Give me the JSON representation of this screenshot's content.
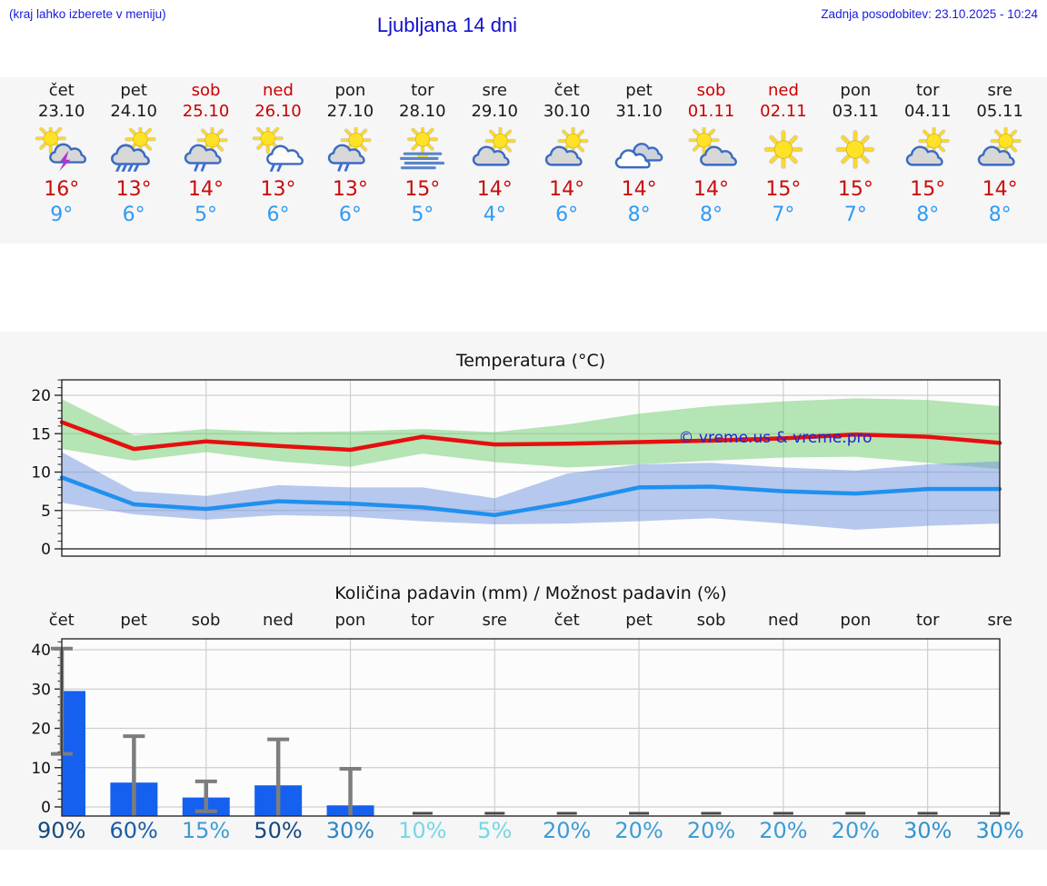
{
  "header": {
    "note": "(kraj lahko izberete v meniju)",
    "title": "Ljubljana 14 dni",
    "updated": "Zadnja posodobitev: 23.10.2025 - 10:24"
  },
  "forecast_days": [
    {
      "name": "čet",
      "date": "23.10",
      "weekend": false,
      "icon": "storm",
      "high": "16°",
      "low": "9°"
    },
    {
      "name": "pet",
      "date": "24.10",
      "weekend": false,
      "icon": "rain-heavy",
      "high": "13°",
      "low": "6°"
    },
    {
      "name": "sob",
      "date": "25.10",
      "weekend": true,
      "icon": "rain-light",
      "high": "14°",
      "low": "5°"
    },
    {
      "name": "ned",
      "date": "26.10",
      "weekend": true,
      "icon": "white-rain",
      "high": "13°",
      "low": "6°"
    },
    {
      "name": "pon",
      "date": "27.10",
      "weekend": false,
      "icon": "rain-light",
      "high": "13°",
      "low": "6°"
    },
    {
      "name": "tor",
      "date": "28.10",
      "weekend": false,
      "icon": "fog",
      "high": "15°",
      "low": "5°"
    },
    {
      "name": "sre",
      "date": "29.10",
      "weekend": false,
      "icon": "partly",
      "high": "14°",
      "low": "4°"
    },
    {
      "name": "čet",
      "date": "30.10",
      "weekend": false,
      "icon": "partly",
      "high": "14°",
      "low": "6°"
    },
    {
      "name": "pet",
      "date": "31.10",
      "weekend": false,
      "icon": "cloudy",
      "high": "14°",
      "low": "8°"
    },
    {
      "name": "sob",
      "date": "01.11",
      "weekend": true,
      "icon": "partly2",
      "high": "14°",
      "low": "8°"
    },
    {
      "name": "ned",
      "date": "02.11",
      "weekend": true,
      "icon": "sunny",
      "high": "15°",
      "low": "7°"
    },
    {
      "name": "pon",
      "date": "03.11",
      "weekend": false,
      "icon": "sunny",
      "high": "15°",
      "low": "7°"
    },
    {
      "name": "tor",
      "date": "04.11",
      "weekend": false,
      "icon": "partly",
      "high": "15°",
      "low": "8°"
    },
    {
      "name": "sre",
      "date": "05.11",
      "weekend": false,
      "icon": "partly",
      "high": "14°",
      "low": "8°"
    }
  ],
  "chart_data": [
    {
      "type": "line",
      "title": "Temperatura (°C)",
      "categories": [
        "čet",
        "pet",
        "sob",
        "ned",
        "pon",
        "tor",
        "sre",
        "čet",
        "pet",
        "sob",
        "ned",
        "pon",
        "tor",
        "sre"
      ],
      "ylim": [
        -1,
        22
      ],
      "yticks": [
        0,
        5,
        10,
        15,
        20
      ],
      "grid": true,
      "watermark": "© vreme.us & vreme.pro",
      "series": [
        {
          "name": "max",
          "color": "#e60f0f",
          "values": [
            16.5,
            13.0,
            14.0,
            13.4,
            12.9,
            14.6,
            13.6,
            13.7,
            13.9,
            14.1,
            14.4,
            14.9,
            14.6,
            13.8
          ]
        },
        {
          "name": "min",
          "color": "#2090ef",
          "values": [
            9.3,
            5.8,
            5.2,
            6.2,
            5.9,
            5.4,
            4.4,
            6.0,
            8.0,
            8.1,
            7.5,
            7.2,
            7.8,
            7.8
          ]
        },
        {
          "name": "max_range_hi",
          "color": "#a8dca8",
          "values": [
            19.5,
            14.8,
            15.6,
            15.2,
            15.3,
            15.6,
            15.2,
            16.2,
            17.6,
            18.6,
            19.2,
            19.6,
            19.4,
            18.6
          ]
        },
        {
          "name": "max_range_lo",
          "color": "#a8dca8",
          "values": [
            13.0,
            11.5,
            12.6,
            11.4,
            10.7,
            12.4,
            11.3,
            10.6,
            11.0,
            11.5,
            11.9,
            12.0,
            11.2,
            10.4
          ]
        },
        {
          "name": "min_range_hi",
          "color": "#aebfe8",
          "values": [
            12.6,
            7.5,
            6.9,
            8.3,
            8.0,
            8.0,
            6.6,
            9.8,
            11.0,
            11.2,
            10.6,
            10.2,
            11.0,
            11.4
          ]
        },
        {
          "name": "min_range_lo",
          "color": "#aebfe8",
          "values": [
            6.0,
            4.5,
            3.8,
            4.4,
            4.2,
            3.6,
            3.2,
            3.3,
            3.6,
            4.0,
            3.3,
            2.5,
            3.0,
            3.3
          ]
        }
      ]
    },
    {
      "type": "bar",
      "title": "Količina padavin (mm) / Možnost padavin (%)",
      "categories": [
        "čet",
        "pet",
        "sob",
        "ned",
        "pon",
        "tor",
        "sre",
        "čet",
        "pet",
        "sob",
        "ned",
        "pon",
        "tor",
        "sre"
      ],
      "ylim": [
        -2.3,
        42.8
      ],
      "yticks": [
        0,
        10,
        20,
        30,
        40
      ],
      "grid": true,
      "bar_color": "#1560ef",
      "values": [
        29.5,
        6.2,
        2.4,
        5.5,
        0.4,
        0,
        0,
        0,
        0,
        0,
        0,
        0,
        0,
        0
      ],
      "error_low": [
        13.5,
        -2.3,
        -1.1,
        -2.3,
        -2.3,
        null,
        null,
        null,
        null,
        null,
        null,
        null,
        null,
        null
      ],
      "error_high": [
        40.3,
        18.0,
        6.5,
        17.2,
        9.7,
        null,
        null,
        null,
        null,
        null,
        null,
        null,
        null,
        null
      ],
      "probabilities": [
        {
          "label": "90%",
          "color": "#12497f"
        },
        {
          "label": "60%",
          "color": "#1a5da3"
        },
        {
          "label": "15%",
          "color": "#3d9cd6"
        },
        {
          "label": "50%",
          "color": "#12497f"
        },
        {
          "label": "30%",
          "color": "#2c86c5"
        },
        {
          "label": "10%",
          "color": "#74d8e6"
        },
        {
          "label": "5%",
          "color": "#74d8e6"
        },
        {
          "label": "20%",
          "color": "#3d9cd6"
        },
        {
          "label": "20%",
          "color": "#3d9cd6"
        },
        {
          "label": "20%",
          "color": "#3d9cd6"
        },
        {
          "label": "20%",
          "color": "#3d9cd6"
        },
        {
          "label": "20%",
          "color": "#3d9cd6"
        },
        {
          "label": "30%",
          "color": "#3093d1"
        },
        {
          "label": "30%",
          "color": "#3093d1"
        }
      ]
    }
  ],
  "colors": {
    "header_blue": "#1a1ae0",
    "weekend_red": "#cc0000",
    "high_temp_red": "#c90c0c",
    "low_temp_blue": "#2f9bf5",
    "temp_max_line": "#e60f0f",
    "temp_min_line": "#2090ef",
    "precip_bar_blue": "#1560ef",
    "error_bar_gray": "#7d7d7d",
    "panel_gray": "#f6f6f6"
  }
}
